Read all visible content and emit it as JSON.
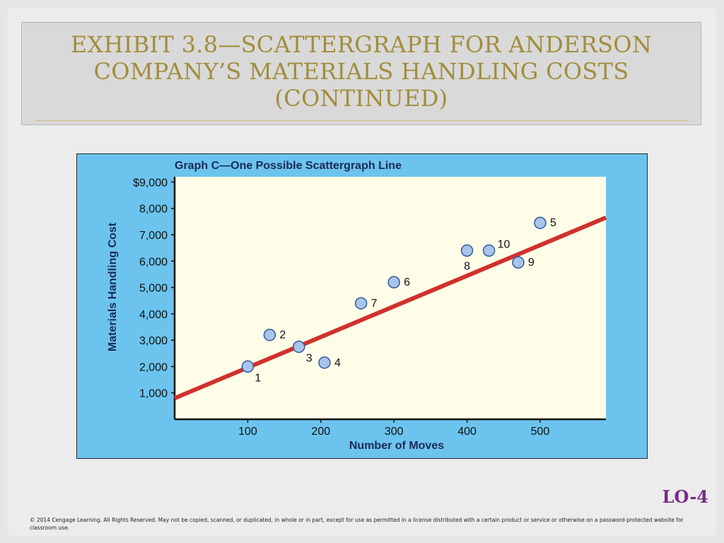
{
  "slide": {
    "title": "EXHIBIT 3.8—SCATTERGRAPH FOR ANDERSON COMPANY’S MATERIALS HANDLING COSTS (CONTINUED)",
    "lo_tag": "LO-4",
    "copyright": "© 2014 Cengage Learning. All Rights Reserved. May not be copied, scanned, or duplicated, in whole or in part, except for use as permitted in a license distributed with a certain product or service or otherwise on a password-protected website for classroom use."
  },
  "colors": {
    "panel_bg": "#6cc4ee",
    "plot_bg": "#fffde8",
    "point_fill": "#a8c4ea",
    "point_stroke": "#2f5b9a",
    "line": "#d0312d",
    "title_gold": "#a28d3a"
  },
  "chart_data": {
    "type": "scatter",
    "title": "Graph C—One Possible Scattergraph Line",
    "xlabel": "Number of Moves",
    "ylabel": "Materials Handling Cost",
    "xlim": [
      0,
      590
    ],
    "ylim": [
      0,
      9200
    ],
    "x_ticks": [
      {
        "value": 100,
        "label": "100"
      },
      {
        "value": 200,
        "label": "200"
      },
      {
        "value": 300,
        "label": "300"
      },
      {
        "value": 400,
        "label": "400"
      },
      {
        "value": 500,
        "label": "500"
      }
    ],
    "y_ticks": [
      {
        "value": 1000,
        "label": "1,000"
      },
      {
        "value": 2000,
        "label": "2,000"
      },
      {
        "value": 3000,
        "label": "3,000"
      },
      {
        "value": 4000,
        "label": "4,000"
      },
      {
        "value": 5000,
        "label": "5,000"
      },
      {
        "value": 6000,
        "label": "6,000"
      },
      {
        "value": 7000,
        "label": "7,000"
      },
      {
        "value": 8000,
        "label": "8,000"
      },
      {
        "value": 9000,
        "label": "$9,000"
      }
    ],
    "points": [
      {
        "label": "1",
        "x": 100,
        "y": 2000,
        "label_pos": "below-right"
      },
      {
        "label": "2",
        "x": 130,
        "y": 3200,
        "label_pos": "right"
      },
      {
        "label": "3",
        "x": 170,
        "y": 2750,
        "label_pos": "below-right"
      },
      {
        "label": "4",
        "x": 205,
        "y": 2150,
        "label_pos": "right"
      },
      {
        "label": "5",
        "x": 500,
        "y": 7450,
        "label_pos": "right"
      },
      {
        "label": "6",
        "x": 300,
        "y": 5200,
        "label_pos": "right"
      },
      {
        "label": "7",
        "x": 255,
        "y": 4400,
        "label_pos": "right"
      },
      {
        "label": "8",
        "x": 400,
        "y": 6400,
        "label_pos": "below"
      },
      {
        "label": "9",
        "x": 470,
        "y": 5950,
        "label_pos": "right"
      },
      {
        "label": "10",
        "x": 430,
        "y": 6400,
        "label_pos": "above-right"
      }
    ],
    "fit_line": {
      "from": {
        "x": 0,
        "y": 800
      },
      "to": {
        "x": 590,
        "y": 7650
      }
    },
    "grid": false,
    "legend": "none"
  }
}
